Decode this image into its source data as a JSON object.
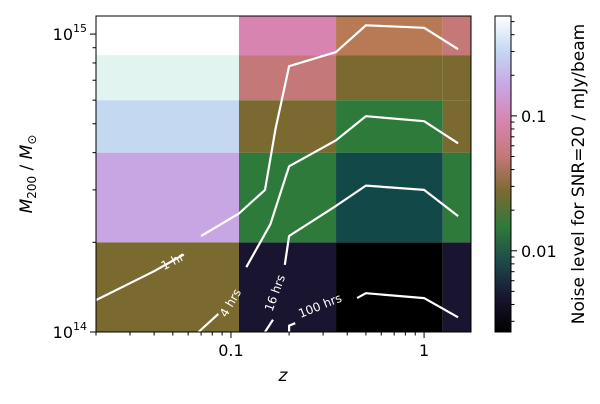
{
  "chart_data": {
    "type": "heatmap",
    "xlabel": "z",
    "ylabel": "M200 / M⊙",
    "x_scale": "log",
    "y_scale": "log",
    "xlim": [
      0.02,
      1.75
    ],
    "ylim": [
      100000000000000.0,
      1150000000000000.0
    ],
    "x_ticks": [
      {
        "value": 0.1,
        "label": "0.1"
      },
      {
        "value": 1,
        "label": "1"
      }
    ],
    "y_ticks": [
      {
        "value": 100000000000000.0,
        "base": "10",
        "exp": "14"
      },
      {
        "value": 1000000000000000.0,
        "base": "10",
        "exp": "15"
      }
    ],
    "colorbar": {
      "label": "Noise level for SNR=20 / mJy/beam",
      "scale": "log",
      "range": [
        0.0025,
        0.55
      ],
      "ticks": [
        {
          "value": 0.01,
          "label": "0.01"
        },
        {
          "value": 0.1,
          "label": "0.1"
        }
      ],
      "colors": [
        "#000000",
        "#191530",
        "#1e4a4a",
        "#2e7a3a",
        "#7a6a30",
        "#c47878",
        "#d884b0",
        "#c8a6e4",
        "#c4d8f2",
        "#ffffff"
      ]
    },
    "cells": [
      {
        "x0": 0.02,
        "x1": 0.11,
        "y0": 100000000000000.0,
        "y1": 200000000000000.0,
        "color": "#7a6a30"
      },
      {
        "x0": 0.02,
        "x1": 0.11,
        "y0": 200000000000000.0,
        "y1": 400000000000000.0,
        "color": "#c8a6e4"
      },
      {
        "x0": 0.02,
        "x1": 0.11,
        "y0": 400000000000000.0,
        "y1": 600000000000000.0,
        "color": "#c4d8f2"
      },
      {
        "x0": 0.02,
        "x1": 0.11,
        "y0": 600000000000000.0,
        "y1": 850000000000000.0,
        "color": "#e2f4ef"
      },
      {
        "x0": 0.02,
        "x1": 0.11,
        "y0": 850000000000000.0,
        "y1": 1150000000000000.0,
        "color": "#ffffff"
      },
      {
        "x0": 0.11,
        "x1": 0.35,
        "y0": 100000000000000.0,
        "y1": 200000000000000.0,
        "color": "#191530"
      },
      {
        "x0": 0.11,
        "x1": 0.35,
        "y0": 200000000000000.0,
        "y1": 400000000000000.0,
        "color": "#2e7a3a"
      },
      {
        "x0": 0.11,
        "x1": 0.35,
        "y0": 400000000000000.0,
        "y1": 600000000000000.0,
        "color": "#7a6a30"
      },
      {
        "x0": 0.11,
        "x1": 0.35,
        "y0": 600000000000000.0,
        "y1": 850000000000000.0,
        "color": "#c47878"
      },
      {
        "x0": 0.11,
        "x1": 0.35,
        "y0": 850000000000000.0,
        "y1": 1150000000000000.0,
        "color": "#d884b0"
      },
      {
        "x0": 0.35,
        "x1": 1.25,
        "y0": 100000000000000.0,
        "y1": 200000000000000.0,
        "color": "#000000"
      },
      {
        "x0": 0.35,
        "x1": 1.25,
        "y0": 200000000000000.0,
        "y1": 400000000000000.0,
        "color": "#124848"
      },
      {
        "x0": 0.35,
        "x1": 1.25,
        "y0": 400000000000000.0,
        "y1": 600000000000000.0,
        "color": "#2e7a3a"
      },
      {
        "x0": 0.35,
        "x1": 1.25,
        "y0": 600000000000000.0,
        "y1": 850000000000000.0,
        "color": "#7a6a30"
      },
      {
        "x0": 0.35,
        "x1": 1.25,
        "y0": 850000000000000.0,
        "y1": 1150000000000000.0,
        "color": "#b87a55"
      },
      {
        "x0": 1.25,
        "x1": 1.75,
        "y0": 100000000000000.0,
        "y1": 200000000000000.0,
        "color": "#191530"
      },
      {
        "x0": 1.25,
        "x1": 1.75,
        "y0": 200000000000000.0,
        "y1": 400000000000000.0,
        "color": "#2e7a3a"
      },
      {
        "x0": 1.25,
        "x1": 1.75,
        "y0": 400000000000000.0,
        "y1": 600000000000000.0,
        "color": "#7a6a30"
      },
      {
        "x0": 1.25,
        "x1": 1.75,
        "y0": 600000000000000.0,
        "y1": 850000000000000.0,
        "color": "#7a6a30"
      },
      {
        "x0": 1.25,
        "x1": 1.75,
        "y0": 850000000000000.0,
        "y1": 1150000000000000.0,
        "color": "#c47878"
      }
    ],
    "contours": [
      {
        "label": "1 hr",
        "label_at": [
          0.05,
          172000000000000.0
        ],
        "label_angle": -27,
        "points": [
          [
            0.02,
            128000000000000.0
          ],
          [
            0.04,
            160000000000000.0
          ],
          [
            0.057,
            182000000000000.0
          ]
        ],
        "points2": [
          [
            0.07,
            210000000000000.0
          ],
          [
            0.11,
            250000000000000.0
          ],
          [
            0.15,
            300000000000000.0
          ],
          [
            0.17,
            480000000000000.0
          ],
          [
            0.2,
            780000000000000.0
          ],
          [
            0.35,
            870000000000000.0
          ],
          [
            0.5,
            1070000000000000.0
          ],
          [
            1.0,
            1050000000000000.0
          ],
          [
            1.5,
            890000000000000.0
          ]
        ]
      },
      {
        "label": "4 hrs",
        "label_at": [
          0.1,
          125000000000000.0
        ],
        "label_angle": -60,
        "points": [
          [
            0.068,
            100000000000000.0
          ],
          [
            0.086,
            115000000000000.0
          ]
        ],
        "points2": [
          [
            0.12,
            165000000000000.0
          ],
          [
            0.16,
            230000000000000.0
          ],
          [
            0.2,
            360000000000000.0
          ],
          [
            0.35,
            440000000000000.0
          ],
          [
            0.5,
            530000000000000.0
          ],
          [
            1.0,
            510000000000000.0
          ],
          [
            1.5,
            430000000000000.0
          ]
        ]
      },
      {
        "label": "16 hrs",
        "label_at": [
          0.17,
          135000000000000.0
        ],
        "label_angle": -70,
        "points": [
          [
            0.15,
            100000000000000.0
          ],
          [
            0.165,
            110000000000000.0
          ]
        ],
        "points2": [
          [
            0.19,
            168000000000000.0
          ],
          [
            0.2,
            210000000000000.0
          ],
          [
            0.35,
            265000000000000.0
          ],
          [
            0.5,
            310000000000000.0
          ],
          [
            1.0,
            300000000000000.0
          ],
          [
            1.5,
            245000000000000.0
          ]
        ]
      },
      {
        "label": "100 hrs",
        "label_at": [
          0.29,
          122000000000000.0
        ],
        "label_angle": -22,
        "points": [
          [
            0.2,
            100000000000000.0
          ],
          [
            0.2,
            105000000000000.0
          ],
          [
            0.215,
            107000000000000.0
          ]
        ],
        "points2": [
          [
            0.45,
            130000000000000.0
          ],
          [
            0.5,
            135000000000000.0
          ],
          [
            1.0,
            130000000000000.0
          ],
          [
            1.5,
            112000000000000.0
          ]
        ]
      }
    ]
  }
}
